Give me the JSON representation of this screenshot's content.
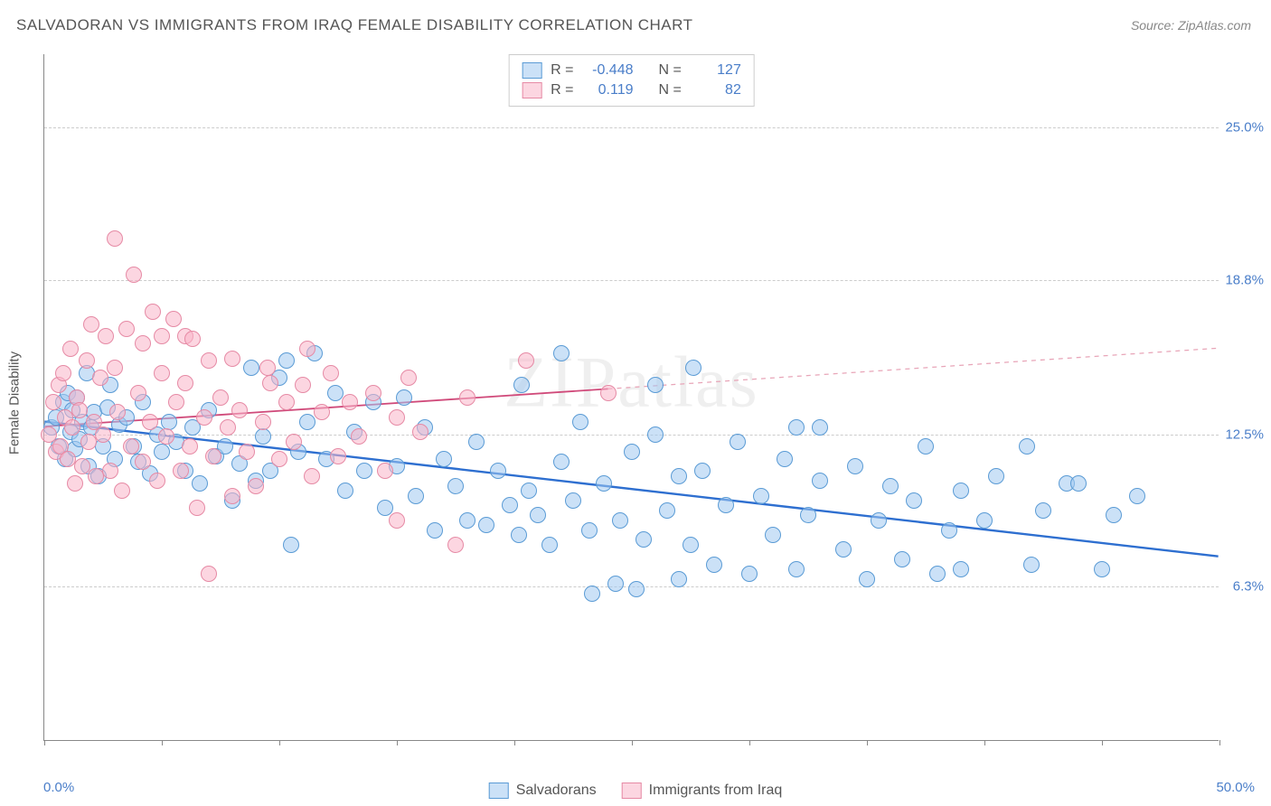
{
  "title": "SALVADORAN VS IMMIGRANTS FROM IRAQ FEMALE DISABILITY CORRELATION CHART",
  "source": "Source: ZipAtlas.com",
  "watermark": "ZIPatlas",
  "yaxis_title": "Female Disability",
  "chart": {
    "type": "scatter",
    "background_color": "#ffffff",
    "grid_color": "#cccccc",
    "grid_dash": "4,4",
    "axis_color": "#888888",
    "tick_label_color": "#4a7ec9",
    "xlim": [
      0,
      50
    ],
    "ylim": [
      0,
      28
    ],
    "y_gridlines": [
      6.3,
      12.5,
      18.8,
      25.0
    ],
    "y_tick_labels": [
      "6.3%",
      "12.5%",
      "18.8%",
      "25.0%"
    ],
    "x_ticks": [
      0,
      5,
      10,
      15,
      20,
      25,
      30,
      35,
      40,
      45,
      50
    ],
    "x_start_label": "0.0%",
    "x_end_label": "50.0%",
    "marker_radius": 9,
    "marker_border_width": 1.2,
    "series": [
      {
        "name": "Salvadorans",
        "fill_color": "rgba(160,200,240,0.55)",
        "stroke_color": "#5a9bd5",
        "trend": {
          "y_at_x0": 13.0,
          "y_at_x50": 7.5,
          "solid_color": "#2e6fd0",
          "width": 2.4,
          "solid_x_end": 50
        },
        "R": "-0.448",
        "N": "127",
        "points": [
          [
            0.3,
            12.8
          ],
          [
            0.5,
            13.2
          ],
          [
            0.6,
            12.0
          ],
          [
            0.8,
            13.8
          ],
          [
            0.9,
            11.5
          ],
          [
            1.0,
            14.2
          ],
          [
            1.1,
            12.6
          ],
          [
            1.2,
            13.5
          ],
          [
            1.3,
            11.9
          ],
          [
            1.4,
            14.0
          ],
          [
            1.5,
            12.3
          ],
          [
            1.6,
            13.0
          ],
          [
            1.8,
            15.0
          ],
          [
            1.9,
            11.2
          ],
          [
            2.0,
            12.8
          ],
          [
            2.1,
            13.4
          ],
          [
            2.3,
            10.8
          ],
          [
            2.5,
            12.0
          ],
          [
            2.7,
            13.6
          ],
          [
            2.8,
            14.5
          ],
          [
            3.0,
            11.5
          ],
          [
            3.2,
            12.9
          ],
          [
            3.5,
            13.2
          ],
          [
            3.8,
            12.0
          ],
          [
            4.0,
            11.4
          ],
          [
            4.2,
            13.8
          ],
          [
            4.5,
            10.9
          ],
          [
            4.8,
            12.5
          ],
          [
            5.0,
            11.8
          ],
          [
            5.3,
            13.0
          ],
          [
            5.6,
            12.2
          ],
          [
            6.0,
            11.0
          ],
          [
            6.3,
            12.8
          ],
          [
            6.6,
            10.5
          ],
          [
            7.0,
            13.5
          ],
          [
            7.3,
            11.6
          ],
          [
            7.7,
            12.0
          ],
          [
            8.0,
            9.8
          ],
          [
            8.3,
            11.3
          ],
          [
            8.8,
            15.2
          ],
          [
            9.0,
            10.6
          ],
          [
            9.3,
            12.4
          ],
          [
            9.6,
            11.0
          ],
          [
            10.0,
            14.8
          ],
          [
            10.3,
            15.5
          ],
          [
            10.5,
            8.0
          ],
          [
            10.8,
            11.8
          ],
          [
            11.2,
            13.0
          ],
          [
            11.5,
            15.8
          ],
          [
            12.0,
            11.5
          ],
          [
            12.4,
            14.2
          ],
          [
            12.8,
            10.2
          ],
          [
            13.2,
            12.6
          ],
          [
            13.6,
            11.0
          ],
          [
            14.0,
            13.8
          ],
          [
            14.5,
            9.5
          ],
          [
            15.0,
            11.2
          ],
          [
            15.3,
            14.0
          ],
          [
            15.8,
            10.0
          ],
          [
            16.2,
            12.8
          ],
          [
            16.6,
            8.6
          ],
          [
            17.0,
            11.5
          ],
          [
            17.5,
            10.4
          ],
          [
            18.0,
            9.0
          ],
          [
            18.4,
            12.2
          ],
          [
            18.8,
            8.8
          ],
          [
            19.3,
            11.0
          ],
          [
            19.8,
            9.6
          ],
          [
            20.2,
            8.4
          ],
          [
            20.3,
            14.5
          ],
          [
            20.6,
            10.2
          ],
          [
            21.0,
            9.2
          ],
          [
            21.5,
            8.0
          ],
          [
            22.0,
            11.4
          ],
          [
            22.0,
            15.8
          ],
          [
            22.5,
            9.8
          ],
          [
            22.8,
            13.0
          ],
          [
            23.2,
            8.6
          ],
          [
            23.3,
            6.0
          ],
          [
            23.8,
            10.5
          ],
          [
            24.3,
            6.4
          ],
          [
            24.5,
            9.0
          ],
          [
            25.0,
            11.8
          ],
          [
            25.2,
            6.2
          ],
          [
            25.5,
            8.2
          ],
          [
            26.0,
            12.5
          ],
          [
            26.0,
            14.5
          ],
          [
            26.5,
            9.4
          ],
          [
            27.0,
            6.6
          ],
          [
            27.0,
            10.8
          ],
          [
            27.5,
            8.0
          ],
          [
            27.6,
            15.2
          ],
          [
            28.0,
            11.0
          ],
          [
            28.5,
            7.2
          ],
          [
            29.0,
            9.6
          ],
          [
            29.5,
            12.2
          ],
          [
            30.0,
            6.8
          ],
          [
            30.5,
            10.0
          ],
          [
            31.0,
            8.4
          ],
          [
            31.5,
            11.5
          ],
          [
            32.0,
            7.0
          ],
          [
            32.0,
            12.8
          ],
          [
            32.5,
            9.2
          ],
          [
            33.0,
            10.6
          ],
          [
            33.0,
            12.8
          ],
          [
            34.0,
            7.8
          ],
          [
            34.5,
            11.2
          ],
          [
            35.0,
            6.6
          ],
          [
            35.5,
            9.0
          ],
          [
            36.0,
            10.4
          ],
          [
            36.5,
            7.4
          ],
          [
            37.0,
            9.8
          ],
          [
            37.5,
            12.0
          ],
          [
            38.0,
            6.8
          ],
          [
            38.5,
            8.6
          ],
          [
            39.0,
            10.2
          ],
          [
            39.0,
            7.0
          ],
          [
            40.0,
            9.0
          ],
          [
            40.5,
            10.8
          ],
          [
            41.8,
            12.0
          ],
          [
            42.0,
            7.2
          ],
          [
            42.5,
            9.4
          ],
          [
            43.5,
            10.5
          ],
          [
            44.0,
            10.5
          ],
          [
            45.0,
            7.0
          ],
          [
            45.5,
            9.2
          ],
          [
            46.5,
            10.0
          ]
        ]
      },
      {
        "name": "Immigrants from Iraq",
        "fill_color": "rgba(250,180,200,0.55)",
        "stroke_color": "#e68aa5",
        "trend": {
          "y_at_x0": 12.8,
          "y_at_x50": 16.0,
          "solid_color": "#d04a7a",
          "width": 1.8,
          "solid_x_end": 24,
          "dash_color": "#e8a5b8"
        },
        "R": "0.119",
        "N": "82",
        "points": [
          [
            0.2,
            12.5
          ],
          [
            0.4,
            13.8
          ],
          [
            0.5,
            11.8
          ],
          [
            0.6,
            14.5
          ],
          [
            0.7,
            12.0
          ],
          [
            0.8,
            15.0
          ],
          [
            0.9,
            13.2
          ],
          [
            1.0,
            11.5
          ],
          [
            1.1,
            16.0
          ],
          [
            1.2,
            12.8
          ],
          [
            1.3,
            10.5
          ],
          [
            1.4,
            14.0
          ],
          [
            1.5,
            13.5
          ],
          [
            1.6,
            11.2
          ],
          [
            1.8,
            15.5
          ],
          [
            1.9,
            12.2
          ],
          [
            2.0,
            17.0
          ],
          [
            2.1,
            13.0
          ],
          [
            2.2,
            10.8
          ],
          [
            2.4,
            14.8
          ],
          [
            2.5,
            12.5
          ],
          [
            2.6,
            16.5
          ],
          [
            2.8,
            11.0
          ],
          [
            3.0,
            15.2
          ],
          [
            3.0,
            20.5
          ],
          [
            3.1,
            13.4
          ],
          [
            3.3,
            10.2
          ],
          [
            3.5,
            16.8
          ],
          [
            3.7,
            12.0
          ],
          [
            3.8,
            19.0
          ],
          [
            4.0,
            14.2
          ],
          [
            4.2,
            11.4
          ],
          [
            4.2,
            16.2
          ],
          [
            4.5,
            13.0
          ],
          [
            4.6,
            17.5
          ],
          [
            4.8,
            10.6
          ],
          [
            5.0,
            15.0
          ],
          [
            5.0,
            16.5
          ],
          [
            5.2,
            12.4
          ],
          [
            5.5,
            17.2
          ],
          [
            5.6,
            13.8
          ],
          [
            5.8,
            11.0
          ],
          [
            6.0,
            14.6
          ],
          [
            6.0,
            16.5
          ],
          [
            6.2,
            12.0
          ],
          [
            6.3,
            16.4
          ],
          [
            6.5,
            9.5
          ],
          [
            6.8,
            13.2
          ],
          [
            7.0,
            15.5
          ],
          [
            7.0,
            6.8
          ],
          [
            7.2,
            11.6
          ],
          [
            7.5,
            14.0
          ],
          [
            7.8,
            12.8
          ],
          [
            8.0,
            10.0
          ],
          [
            8.0,
            15.6
          ],
          [
            8.3,
            13.5
          ],
          [
            8.6,
            11.8
          ],
          [
            9.0,
            10.4
          ],
          [
            9.3,
            13.0
          ],
          [
            9.5,
            15.2
          ],
          [
            9.6,
            14.6
          ],
          [
            10.0,
            11.5
          ],
          [
            10.3,
            13.8
          ],
          [
            10.6,
            12.2
          ],
          [
            11.0,
            14.5
          ],
          [
            11.2,
            16.0
          ],
          [
            11.4,
            10.8
          ],
          [
            11.8,
            13.4
          ],
          [
            12.2,
            15.0
          ],
          [
            12.5,
            11.6
          ],
          [
            13.0,
            13.8
          ],
          [
            13.4,
            12.4
          ],
          [
            14.0,
            14.2
          ],
          [
            14.5,
            11.0
          ],
          [
            15.0,
            13.2
          ],
          [
            15.0,
            9.0
          ],
          [
            15.5,
            14.8
          ],
          [
            16.0,
            12.6
          ],
          [
            17.5,
            8.0
          ],
          [
            18.0,
            14.0
          ],
          [
            20.5,
            15.5
          ],
          [
            24.0,
            14.2
          ]
        ]
      }
    ]
  },
  "legend_top": {
    "row1": {
      "R_label": "R =",
      "N_label": "N ="
    },
    "row2": {
      "R_label": "R =",
      "N_label": "N ="
    }
  },
  "legend_bottom": {
    "s1": "Salvadorans",
    "s2": "Immigrants from Iraq"
  }
}
